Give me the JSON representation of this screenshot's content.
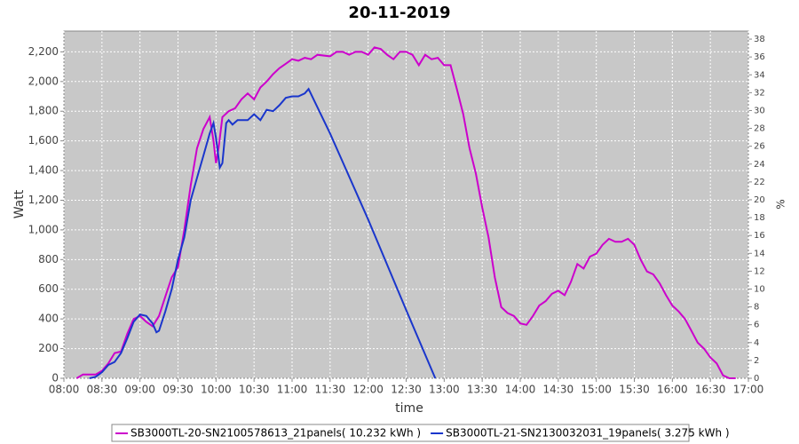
{
  "chart_data": {
    "type": "line",
    "title": "20-11-2019",
    "x_label": "time",
    "y_label": "Watt",
    "y2_label": "%",
    "xlim": [
      "08:00",
      "17:00"
    ],
    "xticks": [
      "08:00",
      "08:30",
      "09:00",
      "09:30",
      "10:00",
      "10:30",
      "11:00",
      "11:30",
      "12:00",
      "12:30",
      "13:00",
      "13:30",
      "14:00",
      "14:30",
      "15:00",
      "15:30",
      "16:00",
      "16:30",
      "17:00"
    ],
    "ylim": [
      0,
      2340
    ],
    "yticks": [
      0,
      200,
      400,
      600,
      800,
      {
        "value": 1000,
        "label": "1,000"
      },
      {
        "value": 1200,
        "label": "1,200"
      },
      {
        "value": 1400,
        "label": "1,400"
      },
      {
        "value": 1600,
        "label": "1,600"
      },
      {
        "value": 1800,
        "label": "1,800"
      },
      {
        "value": 2000,
        "label": "2,000"
      },
      {
        "value": 2200,
        "label": "2,200"
      }
    ],
    "y2lim": [
      0,
      38.9
    ],
    "y2ticks": [
      0,
      2,
      4,
      6,
      8,
      10,
      12,
      14,
      16,
      18,
      20,
      22,
      24,
      26,
      28,
      30,
      32,
      34,
      36,
      38
    ],
    "grid": true,
    "series": [
      {
        "name": "SB3000TL-20-SN2100578613_21panels( 10.232 kWh )",
        "color": "#cc00cc",
        "x": [
          "08:10",
          "08:15",
          "08:25",
          "08:30",
          "08:35",
          "08:40",
          "08:45",
          "08:50",
          "08:55",
          "09:00",
          "09:05",
          "09:10",
          "09:15",
          "09:20",
          "09:25",
          "09:30",
          "09:35",
          "09:40",
          "09:45",
          "09:50",
          "09:55",
          "09:58",
          "10:00",
          "10:02",
          "10:05",
          "10:10",
          "10:15",
          "10:20",
          "10:25",
          "10:30",
          "10:35",
          "10:40",
          "10:45",
          "10:50",
          "10:55",
          "11:00",
          "11:05",
          "11:10",
          "11:15",
          "11:20",
          "11:30",
          "11:35",
          "11:40",
          "11:45",
          "11:50",
          "11:55",
          "12:00",
          "12:05",
          "12:10",
          "12:15",
          "12:20",
          "12:25",
          "12:30",
          "12:35",
          "12:40",
          "12:45",
          "12:50",
          "12:55",
          "13:00",
          "13:05",
          "13:10",
          "13:15",
          "13:20",
          "13:25",
          "13:30",
          "13:35",
          "13:40",
          "13:45",
          "13:50",
          "13:55",
          "14:00",
          "14:05",
          "14:10",
          "14:15",
          "14:20",
          "14:25",
          "14:30",
          "14:35",
          "14:40",
          "14:45",
          "14:50",
          "14:55",
          "15:00",
          "15:05",
          "15:10",
          "15:15",
          "15:20",
          "15:25",
          "15:30",
          "15:35",
          "15:40",
          "15:45",
          "15:50",
          "15:55",
          "16:00",
          "16:05",
          "16:10",
          "16:15",
          "16:20",
          "16:25",
          "16:30",
          "16:35",
          "16:40",
          "16:45",
          "16:50"
        ],
        "values": [
          0,
          25,
          25,
          50,
          100,
          170,
          180,
          300,
          400,
          420,
          380,
          350,
          420,
          550,
          680,
          750,
          1000,
          1300,
          1550,
          1680,
          1760,
          1600,
          1450,
          1550,
          1760,
          1800,
          1820,
          1880,
          1920,
          1880,
          1960,
          2000,
          2050,
          2090,
          2120,
          2150,
          2140,
          2160,
          2150,
          2180,
          2170,
          2200,
          2200,
          2180,
          2200,
          2200,
          2180,
          2230,
          2220,
          2180,
          2150,
          2200,
          2200,
          2180,
          2110,
          2180,
          2150,
          2160,
          2110,
          2110,
          1950,
          1780,
          1550,
          1380,
          1150,
          950,
          680,
          480,
          440,
          420,
          370,
          360,
          420,
          490,
          520,
          570,
          590,
          560,
          650,
          770,
          740,
          820,
          840,
          900,
          940,
          920,
          920,
          940,
          900,
          800,
          720,
          700,
          640,
          560,
          490,
          450,
          400,
          320,
          240,
          200,
          140,
          100,
          20,
          0,
          0
        ]
      },
      {
        "name": "SB3000TL-21-SN2130032031_19panels( 3.275 kWh )",
        "color": "#1a36cc",
        "x": [
          "08:20",
          "08:25",
          "08:30",
          "08:35",
          "08:40",
          "08:45",
          "08:50",
          "08:55",
          "09:00",
          "09:05",
          "09:10",
          "09:13",
          "09:15",
          "09:20",
          "09:25",
          "09:30",
          "09:35",
          "09:40",
          "09:45",
          "09:50",
          "09:55",
          "09:58",
          "10:00",
          "10:03",
          "10:05",
          "10:08",
          "10:10",
          "10:13",
          "10:17",
          "10:25",
          "10:30",
          "10:35",
          "10:40",
          "10:45",
          "10:50",
          "10:55",
          "11:00",
          "11:05",
          "11:10",
          "11:13",
          "11:30",
          "12:00",
          "12:30",
          "12:53"
        ],
        "values": [
          0,
          10,
          40,
          90,
          110,
          170,
          270,
          380,
          430,
          420,
          370,
          310,
          320,
          450,
          600,
          800,
          950,
          1200,
          1350,
          1500,
          1650,
          1720,
          1620,
          1420,
          1450,
          1720,
          1740,
          1710,
          1740,
          1740,
          1780,
          1740,
          1810,
          1800,
          1840,
          1890,
          1900,
          1900,
          1920,
          1950,
          1650,
          1070,
          460,
          0
        ]
      }
    ]
  }
}
